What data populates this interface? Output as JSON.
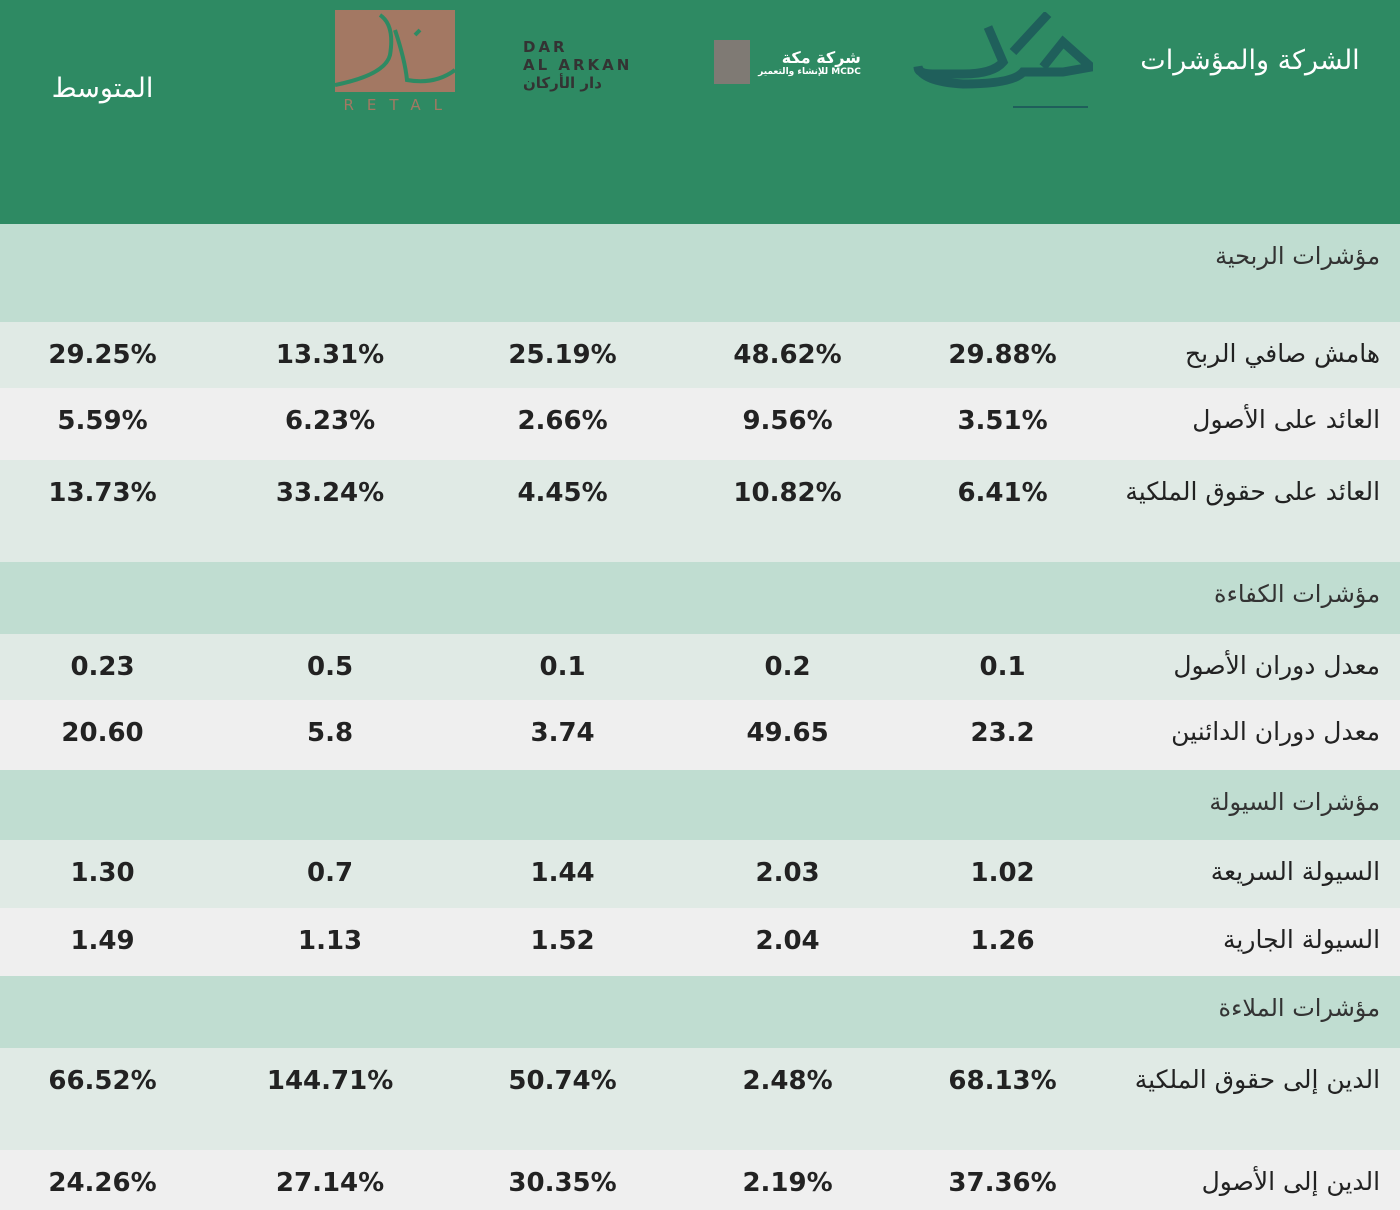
{
  "header": {
    "title": "الشركة والمؤشرات",
    "average": "المتوسط",
    "companies": [
      {
        "name": "masar",
        "logo_text": "مسار MASAR",
        "color": "#1f5f5b"
      },
      {
        "name": "mcdc",
        "logo_text": "شركة مكة للإنشاء والتعمير MCDC",
        "color": "#7f7a74"
      },
      {
        "name": "dar-al-arkan",
        "logo_text": "DAR AL ARKAN دار الأركان",
        "color": "#333333"
      },
      {
        "name": "retal",
        "logo_text": "RETAL",
        "color": "#a37863"
      }
    ]
  },
  "colors": {
    "header": "#2e8a63",
    "section": "#c0ddd1",
    "row_odd": "#e0eae5",
    "row_even": "#efefef"
  },
  "sections": [
    {
      "title": "مؤشرات الربحية",
      "rows": [
        {
          "label": "هامش صافي الربح",
          "values": [
            "29.88%",
            "48.62%",
            "25.19%",
            "13.31%",
            "29.25%"
          ]
        },
        {
          "label": "العائد على الأصول",
          "values": [
            "3.51%",
            "9.56%",
            "2.66%",
            "6.23%",
            "5.59%"
          ]
        },
        {
          "label": "العائد على حقوق الملكية",
          "values": [
            "6.41%",
            "10.82%",
            "4.45%",
            "33.24%",
            "13.73%"
          ]
        }
      ]
    },
    {
      "title": "مؤشرات الكفاءة",
      "rows": [
        {
          "label": "معدل دوران الأصول",
          "values": [
            "0.1",
            "0.2",
            "0.1",
            "0.5",
            "0.23"
          ]
        },
        {
          "label": "معدل دوران الدائنين",
          "values": [
            "23.2",
            "49.65",
            "3.74",
            "5.8",
            "20.60"
          ]
        }
      ]
    },
    {
      "title": "مؤشرات السيولة",
      "rows": [
        {
          "label": "السيولة السريعة",
          "values": [
            "1.02",
            "2.03",
            "1.44",
            "0.7",
            "1.30"
          ]
        },
        {
          "label": "السيولة الجارية",
          "values": [
            "1.26",
            "2.04",
            "1.52",
            "1.13",
            "1.49"
          ]
        }
      ]
    },
    {
      "title": "مؤشرات الملاءة",
      "rows": [
        {
          "label": "الدين إلى حقوق الملكية",
          "values": [
            "68.13%",
            "2.48%",
            "50.74%",
            "144.71%",
            "66.52%"
          ]
        },
        {
          "label": "الدين إلى الأصول",
          "values": [
            "37.36%",
            "2.19%",
            "30.35%",
            "27.14%",
            "24.26%"
          ]
        }
      ]
    }
  ]
}
